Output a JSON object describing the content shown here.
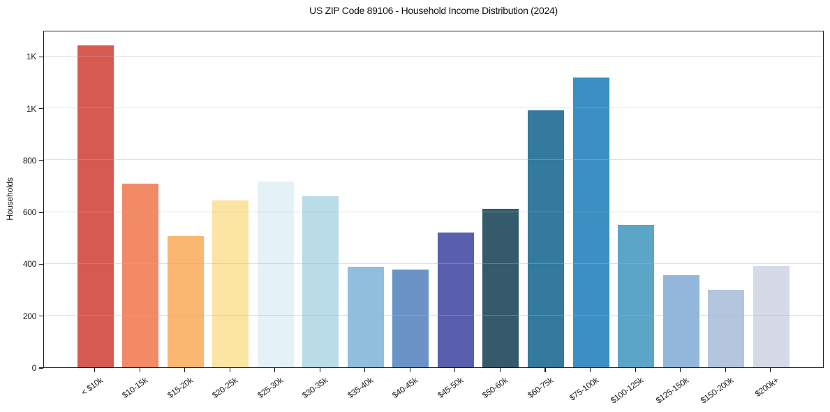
{
  "chart_data": {
    "type": "bar",
    "title": "US ZIP Code 89106 - Household Income Distribution (2024)",
    "xlabel": "",
    "ylabel": "Households",
    "categories": [
      "< $10k",
      "$10-15k",
      "$15-20k",
      "$20-25k",
      "$25-30k",
      "$30-35k",
      "$35-40k",
      "$40-45k",
      "$45-50k",
      "$50-60k",
      "$60-75k",
      "$75-100k",
      "$100-125k",
      "$125-150k",
      "$150-200k",
      "$200k+"
    ],
    "values": [
      1240,
      707,
      505,
      644,
      715,
      660,
      389,
      376,
      520,
      612,
      991,
      1117,
      549,
      356,
      299,
      390
    ],
    "bar_colors": [
      "#d65a50",
      "#f28a66",
      "#f9b772",
      "#fce4a2",
      "#e4f1f6",
      "#badce9",
      "#92bedd",
      "#6b93c8",
      "#5a5fad",
      "#355a6b",
      "#337a9e",
      "#3a90c3",
      "#5ba5c9",
      "#92b7da",
      "#b4c6de",
      "#d6d9e6"
    ],
    "ylim": [
      0,
      1300
    ],
    "yticks": {
      "values": [
        0,
        200,
        400,
        600,
        800,
        1000,
        1200
      ],
      "labels": [
        "0",
        "200",
        "400",
        "600",
        "800",
        "1K",
        "1K"
      ]
    },
    "grid": "horizontal",
    "legend": "none",
    "colors": {
      "background": "#ffffff",
      "grid_color": "rgba(178,178,178,0.40)",
      "spine_color": "#1a1a1a",
      "text_color": "#111111"
    }
  }
}
